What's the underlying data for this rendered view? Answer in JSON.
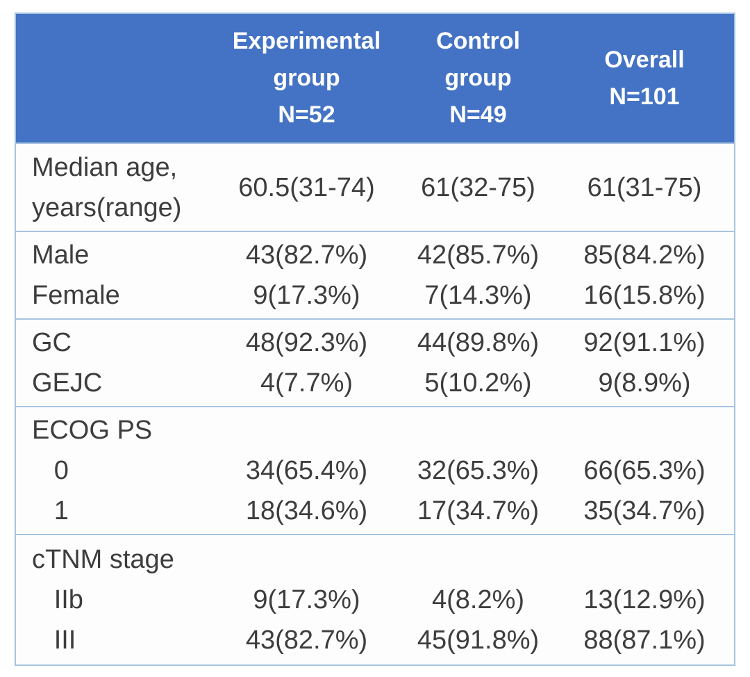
{
  "colors": {
    "header_bg": "#4473c5",
    "header_text": "#ffffff",
    "body_text": "#3d3d3d",
    "border": "#a7c4e0",
    "cell_bg": "#fdfdfd",
    "page_bg": "#ffffff"
  },
  "table": {
    "semantic_title": "Baseline characteristics table",
    "header_cells": [
      "",
      "Experimental\ngroup\nN=52",
      "Control\ngroup\nN=49",
      "Overall\nN=101"
    ],
    "bands": [
      {
        "cells": [
          "Median age,\nyears(range)",
          "60.5(31-74)",
          "61(32-75)",
          "61(31-75)"
        ]
      },
      {
        "cells": [
          "Male\nFemale",
          "43(82.7%)\n9(17.3%)",
          "42(85.7%)\n7(14.3%)",
          "85(84.2%)\n16(15.8%)"
        ]
      },
      {
        "cells": [
          "GC\nGEJC",
          "48(92.3%)\n4(7.7%)",
          "44(89.8%)\n5(10.2%)",
          "92(91.1%)\n9(8.9%)"
        ]
      },
      {
        "cells": [
          "ECOG PS\n   0\n   1",
          "\n34(65.4%)\n18(34.6%)",
          "\n32(65.3%)\n17(34.7%)",
          "\n66(65.3%)\n35(34.7%)"
        ]
      },
      {
        "cells": [
          "cTNM stage\n   IIb\n   III",
          "\n9(17.3%)\n43(82.7%)",
          "\n4(8.2%)\n45(91.8%)",
          "\n13(12.9%)\n88(87.1%)"
        ]
      }
    ]
  }
}
